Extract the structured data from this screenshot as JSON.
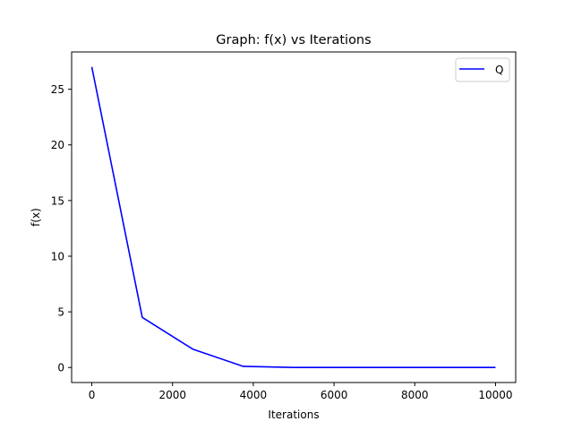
{
  "chart_data": {
    "type": "line",
    "title": "Graph: f(x) vs Iterations",
    "xlabel": "Iterations",
    "ylabel": "f(x)",
    "xlim": [
      -500,
      10500
    ],
    "ylim": [
      -1.35,
      28.35
    ],
    "xticks": [
      0,
      2000,
      4000,
      6000,
      8000,
      10000
    ],
    "xtick_labels": [
      "0",
      "2000",
      "4000",
      "6000",
      "8000",
      "10000"
    ],
    "yticks": [
      0,
      5,
      10,
      15,
      20,
      25
    ],
    "ytick_labels": [
      "0",
      "5",
      "10",
      "15",
      "20",
      "25"
    ],
    "grid": false,
    "legend_position": "upper right",
    "series": [
      {
        "name": "Q",
        "color": "#0000ff",
        "x": [
          0,
          1250,
          2500,
          3750,
          5000,
          6250,
          7500,
          8750,
          10000
        ],
        "y": [
          27.0,
          4.5,
          1.65,
          0.1,
          0.0,
          0.0,
          0.0,
          0.0,
          0.0
        ]
      }
    ]
  }
}
